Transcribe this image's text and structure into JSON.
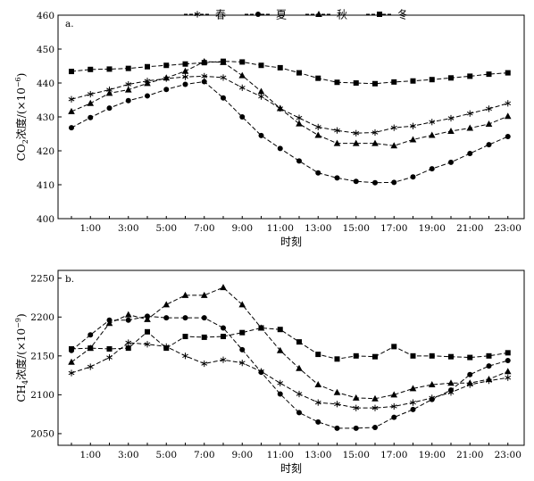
{
  "legend": {
    "items": [
      {
        "label": "春",
        "marker": "star"
      },
      {
        "label": "夏",
        "marker": "circle"
      },
      {
        "label": "秋",
        "marker": "triangle"
      },
      {
        "label": "冬",
        "marker": "square"
      }
    ]
  },
  "chart_data": [
    {
      "type": "line",
      "panel_label": "a.",
      "title": "",
      "xlabel": "时刻",
      "ylabel_parts": [
        "CO",
        "2",
        "浓度/(×10",
        "−6",
        ")"
      ],
      "x": [
        "0:00",
        "1:00",
        "2:00",
        "3:00",
        "4:00",
        "5:00",
        "6:00",
        "7:00",
        "8:00",
        "9:00",
        "10:00",
        "11:00",
        "12:00",
        "13:00",
        "14:00",
        "15:00",
        "16:00",
        "17:00",
        "18:00",
        "19:00",
        "20:00",
        "21:00",
        "22:00",
        "23:00"
      ],
      "xticklabels": [
        "1:00",
        "3:00",
        "5:00",
        "7:00",
        "9:00",
        "11:00",
        "13:00",
        "15:00",
        "17:00",
        "19:00",
        "21:00",
        "23:00"
      ],
      "ylim": [
        400,
        460
      ],
      "yticks": [
        400,
        410,
        420,
        430,
        440,
        450,
        460
      ],
      "legend_position": "top-center",
      "series": [
        {
          "name": "春",
          "marker": "star",
          "values": [
            435.2,
            436.7,
            438.0,
            439.6,
            440.6,
            441.3,
            441.8,
            442.0,
            441.6,
            438.6,
            436.0,
            432.5,
            429.7,
            427.0,
            426.0,
            425.2,
            425.4,
            426.8,
            427.3,
            428.5,
            429.6,
            431.0,
            432.4,
            434.0
          ]
        },
        {
          "name": "夏",
          "marker": "circle",
          "values": [
            426.8,
            429.8,
            432.6,
            434.8,
            436.2,
            438.1,
            439.6,
            440.4,
            435.6,
            430.0,
            424.5,
            420.7,
            417.0,
            413.5,
            412.0,
            411.0,
            410.6,
            410.7,
            412.3,
            414.7,
            416.6,
            419.2,
            421.8,
            424.2
          ]
        },
        {
          "name": "秋",
          "marker": "triangle",
          "values": [
            431.6,
            434.0,
            437.0,
            438.0,
            439.9,
            441.5,
            443.5,
            446.3,
            446.1,
            442.2,
            437.5,
            432.5,
            428.0,
            424.6,
            422.2,
            422.2,
            422.2,
            421.5,
            423.3,
            424.6,
            425.8,
            426.7,
            427.9,
            430.2
          ]
        },
        {
          "name": "冬",
          "marker": "square",
          "values": [
            443.4,
            444.0,
            444.1,
            444.3,
            444.8,
            445.2,
            445.6,
            446.0,
            446.4,
            446.2,
            445.2,
            444.5,
            443.0,
            441.4,
            440.2,
            440.0,
            439.8,
            440.3,
            440.6,
            441.0,
            441.5,
            442.0,
            442.6,
            443.0
          ]
        }
      ]
    },
    {
      "type": "line",
      "panel_label": "b.",
      "title": "",
      "xlabel": "时刻",
      "ylabel_parts": [
        "CH",
        "4",
        "浓度/(×10",
        "−9",
        ")"
      ],
      "x": [
        "0:00",
        "1:00",
        "2:00",
        "3:00",
        "4:00",
        "5:00",
        "6:00",
        "7:00",
        "8:00",
        "9:00",
        "10:00",
        "11:00",
        "12:00",
        "13:00",
        "14:00",
        "15:00",
        "16:00",
        "17:00",
        "18:00",
        "19:00",
        "20:00",
        "21:00",
        "22:00",
        "23:00"
      ],
      "xticklabels": [
        "1:00",
        "3:00",
        "5:00",
        "7:00",
        "9:00",
        "11:00",
        "13:00",
        "15:00",
        "17:00",
        "19:00",
        "21:00",
        "23:00"
      ],
      "ylim": [
        2035,
        2260
      ],
      "yticks": [
        2050,
        2100,
        2150,
        2200,
        2250
      ],
      "series": [
        {
          "name": "春",
          "marker": "star",
          "values": [
            2128,
            2136,
            2148,
            2167,
            2165,
            2162,
            2150,
            2140,
            2145,
            2141,
            2130,
            2115,
            2101,
            2090,
            2088,
            2083,
            2083,
            2085,
            2090,
            2096,
            2103,
            2113,
            2118,
            2122
          ]
        },
        {
          "name": "夏",
          "marker": "circle",
          "values": [
            2157,
            2177,
            2196,
            2196,
            2201,
            2199,
            2199,
            2199,
            2186,
            2158,
            2129,
            2101,
            2077,
            2065,
            2057,
            2057,
            2058,
            2071,
            2081,
            2094,
            2106,
            2126,
            2137,
            2144
          ]
        },
        {
          "name": "秋",
          "marker": "triangle",
          "values": [
            2142,
            2160,
            2192,
            2203,
            2197,
            2216,
            2228,
            2228,
            2238,
            2216,
            2186,
            2157,
            2134,
            2113,
            2103,
            2096,
            2095,
            2100,
            2108,
            2113,
            2115,
            2115,
            2120,
            2130
          ]
        },
        {
          "name": "冬",
          "marker": "square",
          "values": [
            2159,
            2160,
            2159,
            2160,
            2181,
            2160,
            2175,
            2174,
            2175,
            2180,
            2186,
            2184,
            2168,
            2152,
            2146,
            2150,
            2149,
            2162,
            2150,
            2150,
            2149,
            2148,
            2150,
            2154
          ]
        }
      ]
    }
  ]
}
